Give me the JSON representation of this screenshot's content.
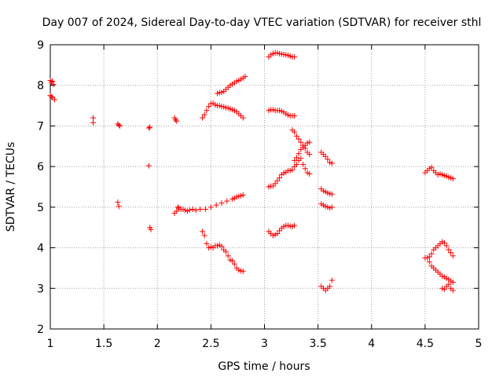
{
  "chart_data": {
    "type": "scatter",
    "title": "Day 007 of 2024, Sidereal Day-to-day VTEC variation (SDTVAR) for receiver sthl",
    "xlabel": "GPS time / hours",
    "ylabel": "SDTVAR / TECUs",
    "xlim": [
      1,
      5
    ],
    "ylim": [
      2,
      9
    ],
    "grid": true,
    "marker": "+",
    "colors": {
      "marker": "#ff0000",
      "grid": "#a0a0a0",
      "axis": "#000000"
    },
    "x_ticks": [
      {
        "value": 1,
        "label": "1"
      },
      {
        "value": 1.5,
        "label": "1.5"
      },
      {
        "value": 2,
        "label": "2"
      },
      {
        "value": 2.5,
        "label": "2.5"
      },
      {
        "value": 3,
        "label": "3"
      },
      {
        "value": 3.5,
        "label": "3.5"
      },
      {
        "value": 4,
        "label": "4"
      },
      {
        "value": 4.5,
        "label": "4.5"
      },
      {
        "value": 5,
        "label": "5"
      }
    ],
    "y_ticks": [
      {
        "value": 2,
        "label": "2"
      },
      {
        "value": 3,
        "label": "3"
      },
      {
        "value": 4,
        "label": "4"
      },
      {
        "value": 5,
        "label": "5"
      },
      {
        "value": 6,
        "label": "6"
      },
      {
        "value": 7,
        "label": "7"
      },
      {
        "value": 8,
        "label": "8"
      },
      {
        "value": 9,
        "label": "9"
      }
    ],
    "series": [
      {
        "name": "SDTVAR",
        "x": [
          1.0,
          1.01,
          1.02,
          1.03,
          1.0,
          1.01,
          1.02,
          1.04,
          1.4,
          1.4,
          1.63,
          1.64,
          1.65,
          1.63,
          1.64,
          1.92,
          1.93,
          1.92,
          1.93,
          1.94,
          2.16,
          2.17,
          2.18,
          2.16,
          2.18,
          2.19,
          2.2,
          2.22,
          2.24,
          2.26,
          2.28,
          2.3,
          2.33,
          2.36,
          2.4,
          2.45,
          2.5,
          2.55,
          2.6,
          2.65,
          2.7,
          2.72,
          2.74,
          2.76,
          2.78,
          2.8,
          2.42,
          2.44,
          2.46,
          2.48,
          2.5,
          2.52,
          2.54,
          2.56,
          2.58,
          2.6,
          2.62,
          2.64,
          2.66,
          2.68,
          2.7,
          2.72,
          2.74,
          2.76,
          2.78,
          2.8,
          2.56,
          2.58,
          2.6,
          2.62,
          2.64,
          2.66,
          2.68,
          2.7,
          2.72,
          2.74,
          2.76,
          2.78,
          2.8,
          2.82,
          2.42,
          2.44,
          2.46,
          2.48,
          2.5,
          2.52,
          2.54,
          2.56,
          2.58,
          2.6,
          2.62,
          2.64,
          2.66,
          2.68,
          2.7,
          2.72,
          2.74,
          2.76,
          2.78,
          2.8,
          3.04,
          3.06,
          3.08,
          3.1,
          3.12,
          3.14,
          3.16,
          3.18,
          3.2,
          3.22,
          3.24,
          3.26,
          3.28,
          3.04,
          3.06,
          3.08,
          3.1,
          3.12,
          3.14,
          3.16,
          3.18,
          3.2,
          3.22,
          3.24,
          3.26,
          3.28,
          3.04,
          3.06,
          3.08,
          3.1,
          3.12,
          3.14,
          3.16,
          3.18,
          3.2,
          3.22,
          3.24,
          3.26,
          3.28,
          3.3,
          3.32,
          3.34,
          3.36,
          3.38,
          3.4,
          3.42,
          3.04,
          3.06,
          3.08,
          3.1,
          3.12,
          3.14,
          3.16,
          3.18,
          3.2,
          3.22,
          3.24,
          3.26,
          3.28,
          3.26,
          3.28,
          3.3,
          3.32,
          3.34,
          3.36,
          3.38,
          3.4,
          3.42,
          3.28,
          3.3,
          3.32,
          3.34,
          3.36,
          3.38,
          3.4,
          3.42,
          3.53,
          3.55,
          3.57,
          3.59,
          3.61,
          3.63,
          3.53,
          3.55,
          3.57,
          3.59,
          3.61,
          3.63,
          3.53,
          3.55,
          3.57,
          3.59,
          3.61,
          3.63,
          3.53,
          3.55,
          3.57,
          3.59,
          3.61,
          3.63,
          4.5,
          4.52,
          4.54,
          4.56,
          4.58,
          4.6,
          4.62,
          4.64,
          4.66,
          4.68,
          4.7,
          4.72,
          4.74,
          4.76,
          4.5,
          4.52,
          4.54,
          4.56,
          4.58,
          4.6,
          4.62,
          4.64,
          4.66,
          4.68,
          4.7,
          4.72,
          4.74,
          4.76,
          4.54,
          4.56,
          4.58,
          4.6,
          4.62,
          4.64,
          4.66,
          4.68,
          4.7,
          4.72,
          4.74,
          4.76,
          4.66,
          4.68,
          4.7,
          4.72,
          4.74,
          4.76
        ],
        "y": [
          8.12,
          8.08,
          8.1,
          8.02,
          7.75,
          7.72,
          7.7,
          7.65,
          7.2,
          7.08,
          7.05,
          7.02,
          7.0,
          5.12,
          5.02,
          6.95,
          6.97,
          6.02,
          4.5,
          4.45,
          7.2,
          7.15,
          7.12,
          4.85,
          4.9,
          5.0,
          4.98,
          4.95,
          4.95,
          4.92,
          4.9,
          4.93,
          4.95,
          4.92,
          4.95,
          4.95,
          5.0,
          5.05,
          5.1,
          5.15,
          5.2,
          5.22,
          5.25,
          5.27,
          5.28,
          5.3,
          7.2,
          7.28,
          7.38,
          7.48,
          7.55,
          7.56,
          7.52,
          7.5,
          7.5,
          7.48,
          7.47,
          7.45,
          7.44,
          7.42,
          7.4,
          7.38,
          7.35,
          7.3,
          7.25,
          7.2,
          7.8,
          7.82,
          7.83,
          7.85,
          7.9,
          7.95,
          8.0,
          8.03,
          8.06,
          8.1,
          8.12,
          8.15,
          8.18,
          8.22,
          4.4,
          4.3,
          4.1,
          4.0,
          4.02,
          4.0,
          4.05,
          4.05,
          4.07,
          4.03,
          3.95,
          3.9,
          3.8,
          3.7,
          3.68,
          3.6,
          3.5,
          3.45,
          3.43,
          3.42,
          8.7,
          8.75,
          8.78,
          8.8,
          8.8,
          8.78,
          8.77,
          8.76,
          8.75,
          8.74,
          8.72,
          8.7,
          8.7,
          7.38,
          7.4,
          7.4,
          7.38,
          7.38,
          7.38,
          7.36,
          7.34,
          7.3,
          7.27,
          7.25,
          7.25,
          7.25,
          5.5,
          5.52,
          5.52,
          5.58,
          5.65,
          5.72,
          5.8,
          5.84,
          5.86,
          5.9,
          5.9,
          5.92,
          6.15,
          6.22,
          6.32,
          6.42,
          6.48,
          6.52,
          6.58,
          6.6,
          4.4,
          4.35,
          4.3,
          4.32,
          4.35,
          4.42,
          4.48,
          4.52,
          4.55,
          4.55,
          4.53,
          4.52,
          4.55,
          6.9,
          6.85,
          6.75,
          6.68,
          6.6,
          6.52,
          6.45,
          6.35,
          6.3,
          6.0,
          6.05,
          6.15,
          6.2,
          6.05,
          5.95,
          5.85,
          5.82,
          6.35,
          6.3,
          6.25,
          6.18,
          6.1,
          6.08,
          5.45,
          5.4,
          5.38,
          5.35,
          5.33,
          5.32,
          5.08,
          5.05,
          5.02,
          5.0,
          4.98,
          5.0,
          3.05,
          3.0,
          2.95,
          3.0,
          3.05,
          3.2,
          5.85,
          5.9,
          5.95,
          5.98,
          5.9,
          5.85,
          5.8,
          5.82,
          5.8,
          5.78,
          5.76,
          5.74,
          5.72,
          5.7,
          3.75,
          3.75,
          3.78,
          3.85,
          3.95,
          4.0,
          4.05,
          4.1,
          4.15,
          4.12,
          4.05,
          3.95,
          3.88,
          3.8,
          3.65,
          3.55,
          3.5,
          3.45,
          3.4,
          3.35,
          3.3,
          3.28,
          3.25,
          3.22,
          3.18,
          3.15,
          3.0,
          2.98,
          3.05,
          3.1,
          3.0,
          2.95
        ]
      }
    ]
  }
}
